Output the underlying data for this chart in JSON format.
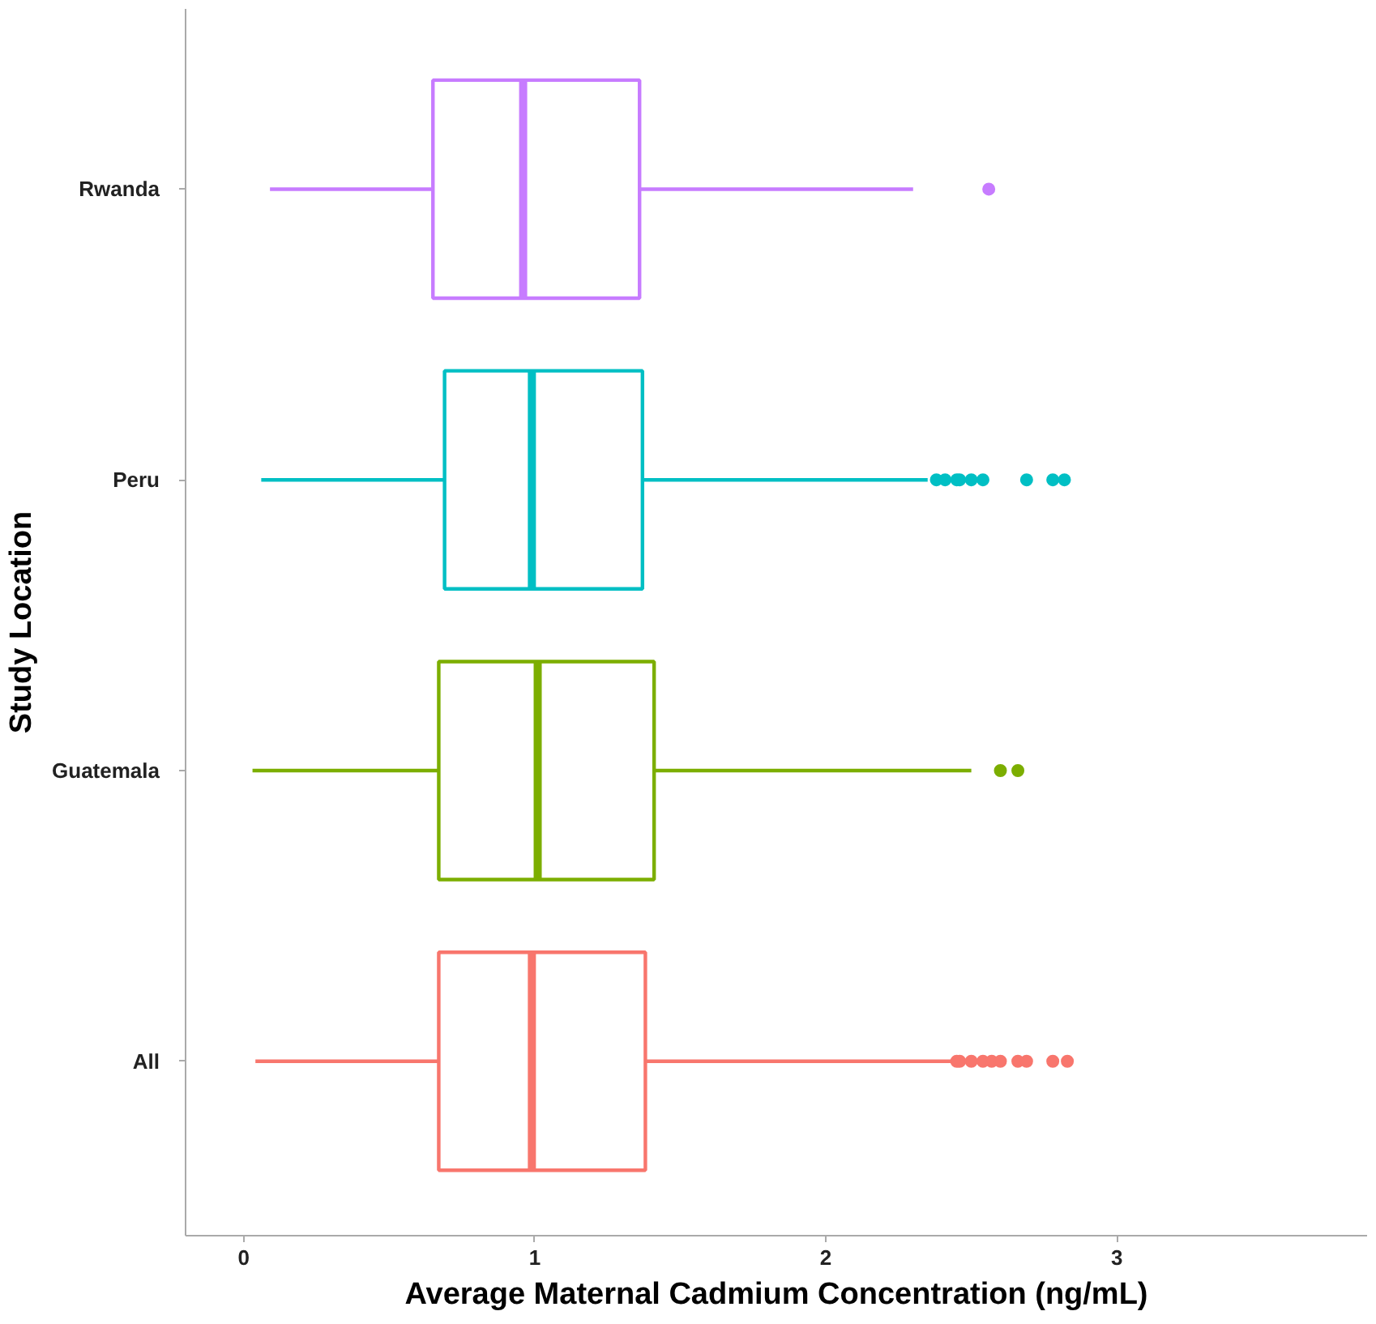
{
  "chart_data": {
    "type": "box",
    "orientation": "horizontal",
    "xlabel": "Average Maternal Cadmium Concentration (ng/mL)",
    "ylabel": "Study Location",
    "categories": [
      "Rwanda",
      "Peru",
      "Guatemala",
      "All"
    ],
    "colors": [
      "#c77cff",
      "#00bfc4",
      "#7cae00",
      "#f8766d"
    ],
    "boxes": [
      {
        "low": 0.09,
        "q1": 0.65,
        "median": 0.96,
        "q3": 1.36,
        "high": 2.3,
        "outliers": [
          2.56
        ]
      },
      {
        "low": 0.06,
        "q1": 0.69,
        "median": 0.99,
        "q3": 1.37,
        "high": 2.35,
        "outliers": [
          2.38,
          2.41,
          2.45,
          2.46,
          2.5,
          2.54,
          2.69,
          2.78,
          2.82
        ]
      },
      {
        "low": 0.03,
        "q1": 0.67,
        "median": 1.01,
        "q3": 1.41,
        "high": 2.5,
        "outliers": [
          2.6,
          2.66
        ]
      },
      {
        "low": 0.04,
        "q1": 0.67,
        "median": 0.99,
        "q3": 1.38,
        "high": 2.44,
        "outliers": [
          2.45,
          2.46,
          2.5,
          2.54,
          2.57,
          2.6,
          2.66,
          2.69,
          2.78,
          2.83
        ]
      }
    ],
    "xlim": [
      -0.2,
      3.86
    ],
    "xticks": [
      0,
      1,
      2,
      3
    ],
    "grid": false
  }
}
